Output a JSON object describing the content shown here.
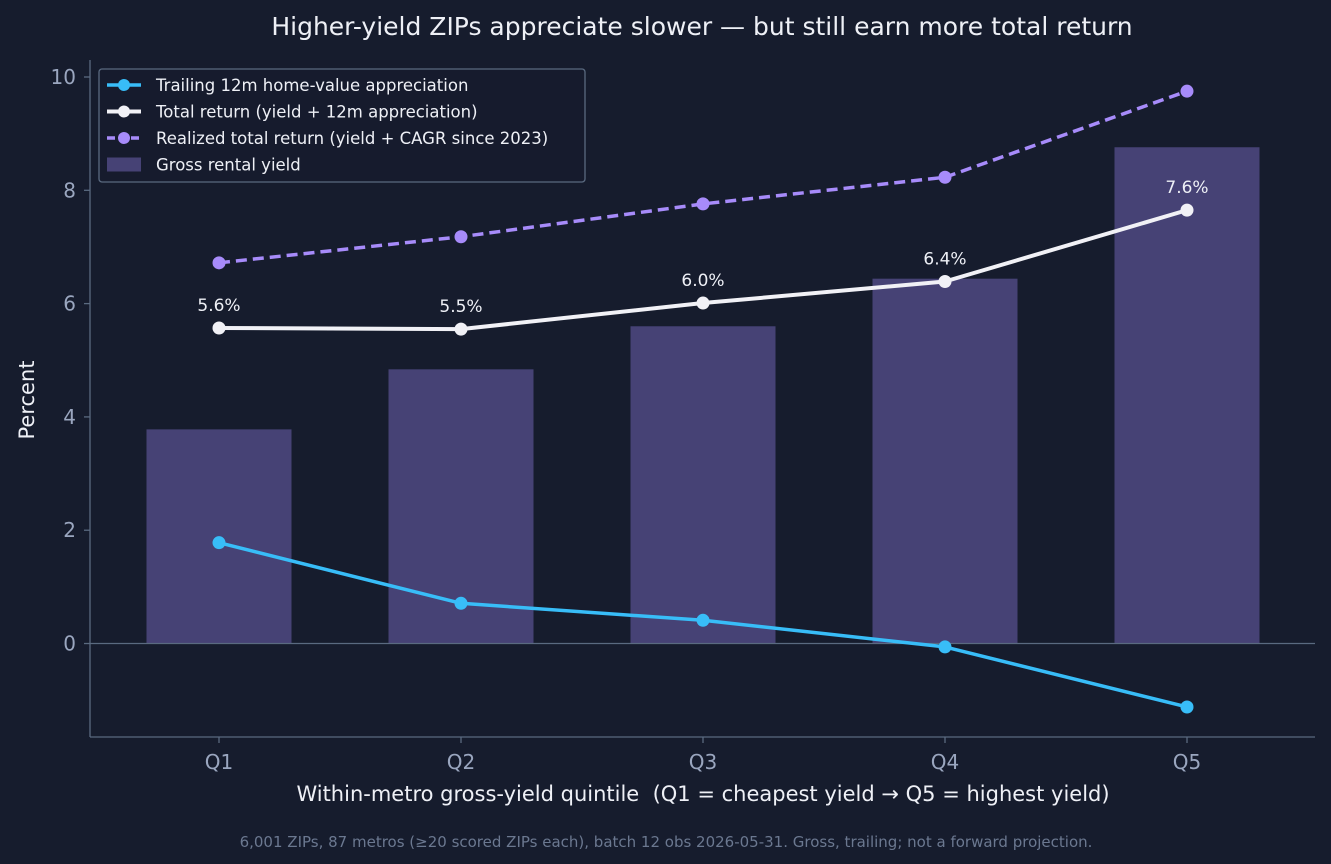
{
  "colors": {
    "background": "#161c2d",
    "text": "#eef0f6",
    "tick": "#9aa6bf",
    "axis": "#5a6a80",
    "note": "#6b7890",
    "bar": "#464275",
    "appreciation": "#38bdf8",
    "total_return": "#f1f1f6",
    "realized": "#a78bfa",
    "legend_bg": "#161c2d",
    "legend_border": "#5a6a80"
  },
  "chart_data": {
    "type": "bar",
    "title": "Higher-yield ZIPs appreciate slower — but still earn more total return",
    "xlabel": "Within-metro gross-yield quintile  (Q1 = cheapest yield → Q5 = highest yield)",
    "ylabel": "Percent",
    "categories": [
      "Q1",
      "Q2",
      "Q3",
      "Q4",
      "Q5"
    ],
    "ylim": [
      -1.65,
      10.3
    ],
    "yticks": [
      0,
      2,
      4,
      6,
      8,
      10
    ],
    "grid": false,
    "legend_position": "top-left",
    "footnote": "6,001 ZIPs, 87 metros (≥20 scored ZIPs each), batch 12 obs 2026-05-31. Gross, trailing; not a forward projection.",
    "series": [
      {
        "name": "Trailing 12m home-value appreciation",
        "kind": "line",
        "style": "solid",
        "color_key": "appreciation",
        "values": [
          1.78,
          0.71,
          0.41,
          -0.06,
          -1.12
        ]
      },
      {
        "name": "Total return (yield + 12m appreciation)",
        "kind": "line",
        "style": "solid",
        "color_key": "total_return",
        "values": [
          5.57,
          5.55,
          6.01,
          6.39,
          7.65
        ],
        "data_labels": [
          "5.6%",
          "5.5%",
          "6.0%",
          "6.4%",
          "7.6%"
        ]
      },
      {
        "name": "Realized total return (yield + CAGR since 2023)",
        "kind": "line",
        "style": "dashed",
        "color_key": "realized",
        "values": [
          6.72,
          7.18,
          7.76,
          8.23,
          9.75
        ]
      },
      {
        "name": "Gross rental yield",
        "kind": "bar",
        "color_key": "bar",
        "values": [
          3.78,
          4.84,
          5.6,
          6.44,
          8.76
        ]
      }
    ]
  }
}
